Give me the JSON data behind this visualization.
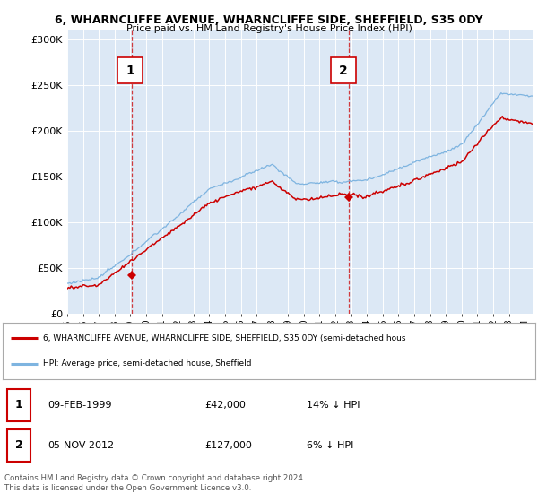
{
  "title": "6, WHARNCLIFFE AVENUE, WHARNCLIFFE SIDE, SHEFFIELD, S35 0DY",
  "subtitle": "Price paid vs. HM Land Registry's House Price Index (HPI)",
  "yticks": [
    0,
    50000,
    100000,
    150000,
    200000,
    250000,
    300000
  ],
  "ytick_labels": [
    "£0",
    "£50K",
    "£100K",
    "£150K",
    "£200K",
    "£250K",
    "£300K"
  ],
  "ylim": [
    0,
    310000
  ],
  "background_color": "#dce8f5",
  "hpi_color": "#7eb4e0",
  "price_color": "#cc0000",
  "marker1_x": 1999.1,
  "marker1_y": 42000,
  "marker2_x": 2012.85,
  "marker2_y": 127000,
  "legend_line1": "6, WHARNCLIFFE AVENUE, WHARNCLIFFE SIDE, SHEFFIELD, S35 0DY (semi-detached hous",
  "legend_line2": "HPI: Average price, semi-detached house, Sheffield",
  "table_row1": [
    "1",
    "09-FEB-1999",
    "£42,000",
    "14% ↓ HPI"
  ],
  "table_row2": [
    "2",
    "05-NOV-2012",
    "£127,000",
    "6% ↓ HPI"
  ],
  "footer": "Contains HM Land Registry data © Crown copyright and database right 2024.\nThis data is licensed under the Open Government Licence v3.0.",
  "xtick_years": [
    1995,
    1996,
    1997,
    1998,
    1999,
    2000,
    2001,
    2002,
    2003,
    2004,
    2005,
    2006,
    2007,
    2008,
    2009,
    2010,
    2011,
    2012,
    2013,
    2014,
    2015,
    2016,
    2017,
    2018,
    2019,
    2020,
    2021,
    2022,
    2023,
    2024
  ],
  "xlim_left": 1995.0,
  "xlim_right": 2024.5
}
